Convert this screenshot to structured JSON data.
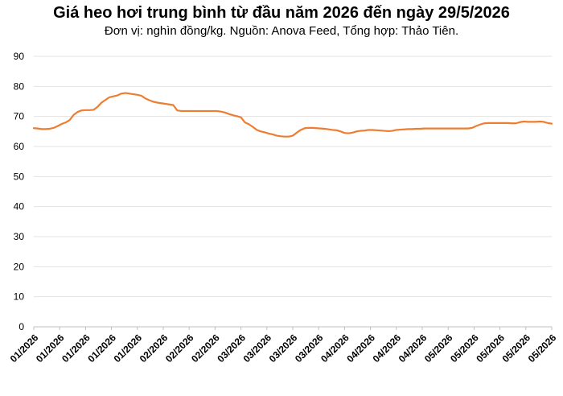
{
  "chart_data": {
    "type": "line",
    "title": "Giá heo hơi trung bình từ đầu năm 2026 đến ngày 29/5/2026",
    "subtitle": "Đơn vị: nghìn đồng/kg. Nguồn: Anova Feed, Tổng hợp: Thảo Tiên.",
    "xlabel": "",
    "ylabel": "",
    "ylim": [
      0,
      90
    ],
    "yticks": [
      "0",
      "10",
      "20",
      "30",
      "40",
      "50",
      "60",
      "70",
      "80",
      "90"
    ],
    "x_tick_labels": [
      "01/2026",
      "01/2026",
      "01/2026",
      "01/2026",
      "01/2026",
      "02/2026",
      "02/2026",
      "02/2026",
      "03/2026",
      "03/2026",
      "03/2026",
      "03/2026",
      "04/2026",
      "04/2026",
      "04/2026",
      "04/2026",
      "05/2026",
      "05/2026",
      "05/2026",
      "05/2026",
      "05/2026"
    ],
    "grid": true,
    "line_color": "#ed7d31",
    "series": [
      {
        "values": [
          66.1,
          66.0,
          65.8,
          65.8,
          65.9,
          66.2,
          66.8,
          67.5,
          68.0,
          68.8,
          70.5,
          71.5,
          72.0,
          72.1,
          72.1,
          72.2,
          73.2,
          74.6,
          75.5,
          76.4,
          76.7,
          77.0,
          77.6,
          77.8,
          77.6,
          77.4,
          77.2,
          76.9,
          76.0,
          75.4,
          74.9,
          74.6,
          74.4,
          74.2,
          74.0,
          73.8,
          72.0,
          71.8,
          71.8,
          71.8,
          71.8,
          71.8,
          71.8,
          71.8,
          71.8,
          71.8,
          71.8,
          71.6,
          71.3,
          70.8,
          70.4,
          70.1,
          69.7,
          68.0,
          67.4,
          66.5,
          65.5,
          65.0,
          64.7,
          64.3,
          64.0,
          63.6,
          63.4,
          63.3,
          63.3,
          63.6,
          64.6,
          65.5,
          66.1,
          66.2,
          66.2,
          66.1,
          66.0,
          65.9,
          65.7,
          65.5,
          65.4,
          65.0,
          64.5,
          64.4,
          64.6,
          65.0,
          65.2,
          65.3,
          65.5,
          65.5,
          65.4,
          65.3,
          65.2,
          65.1,
          65.2,
          65.5,
          65.6,
          65.7,
          65.8,
          65.8,
          65.9,
          65.9,
          66.0,
          66.0,
          66.0,
          66.0,
          66.0,
          66.0,
          66.0,
          66.0,
          66.0,
          66.0,
          66.0,
          66.0,
          66.2,
          66.8,
          67.3,
          67.7,
          67.8,
          67.8,
          67.8,
          67.8,
          67.8,
          67.8,
          67.7,
          67.7,
          68.1,
          68.3,
          68.2,
          68.2,
          68.2,
          68.3,
          68.2,
          67.8,
          67.6
        ]
      }
    ]
  }
}
